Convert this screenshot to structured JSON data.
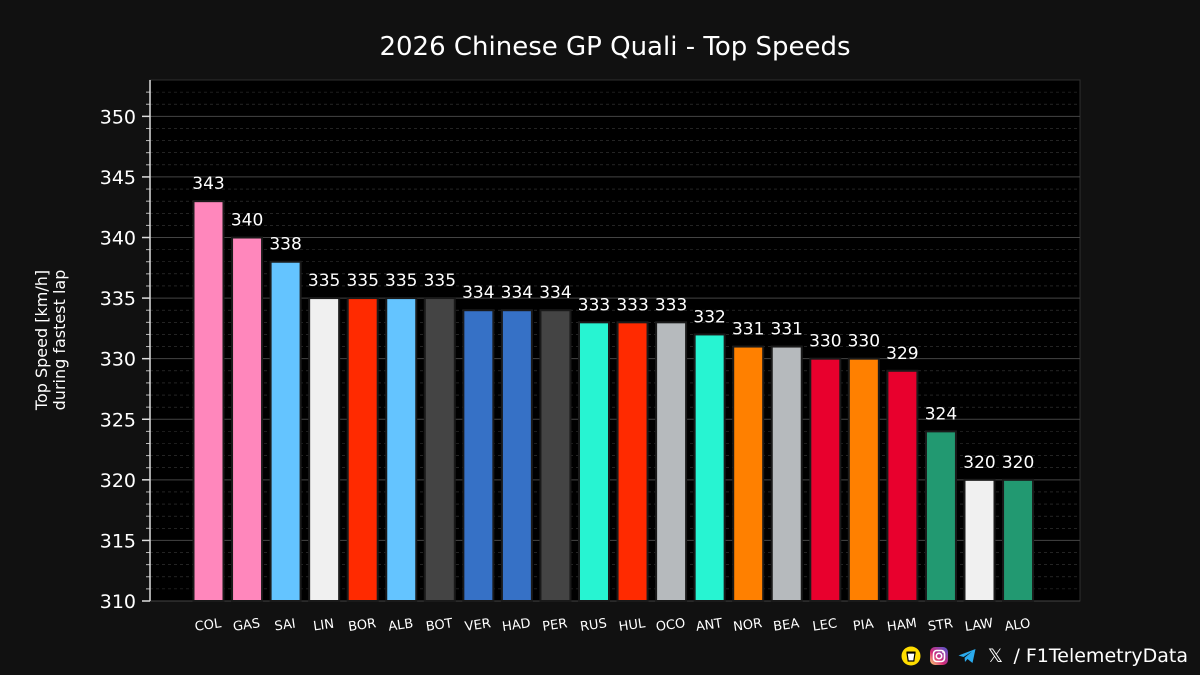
{
  "chart_data": {
    "type": "bar",
    "title": "2026 Chinese GP Quali - Top Speeds",
    "ylabel_line1": "Top Speed [km/h]",
    "ylabel_line2": "during fastest lap",
    "xlabel": "",
    "ylim": [
      310,
      353
    ],
    "yticks": [
      310,
      315,
      320,
      325,
      330,
      335,
      340,
      345,
      350
    ],
    "categories": [
      "COL",
      "GAS",
      "SAI",
      "LIN",
      "BOR",
      "ALB",
      "BOT",
      "VER",
      "HAD",
      "PER",
      "RUS",
      "HUL",
      "OCO",
      "ANT",
      "NOR",
      "BEA",
      "LEC",
      "PIA",
      "HAM",
      "STR",
      "LAW",
      "ALO"
    ],
    "values": [
      343,
      340,
      338,
      335,
      335,
      335,
      335,
      334,
      334,
      334,
      333,
      333,
      333,
      332,
      331,
      331,
      330,
      330,
      329,
      324,
      320,
      320
    ],
    "colors": [
      "#FF87BC",
      "#FF87BC",
      "#64C4FF",
      "#F0F0F0",
      "#FF2A00",
      "#64C4FF",
      "#444444",
      "#3671C6",
      "#3671C6",
      "#444444",
      "#27F4D2",
      "#FF2A00",
      "#B6BABD",
      "#27F4D2",
      "#FF8000",
      "#B6BABD",
      "#E8002D",
      "#FF8000",
      "#E8002D",
      "#229971",
      "#F0F0F0",
      "#229971"
    ],
    "grid": true,
    "legend": "none"
  },
  "footer": {
    "handle": "/ F1TelemetryData",
    "x_glyph": "𝕏",
    "icons": [
      "bmc-icon",
      "instagram-icon",
      "telegram-icon",
      "x-icon"
    ]
  }
}
